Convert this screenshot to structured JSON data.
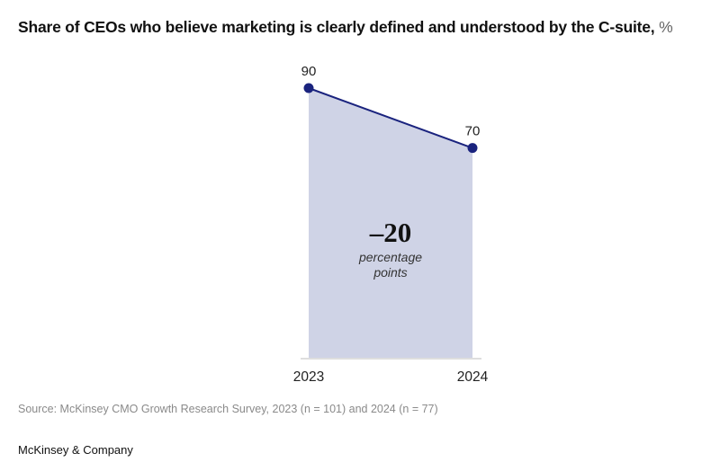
{
  "title": {
    "text": "Share of CEOs who believe marketing is clearly defined and understood by the C-suite,",
    "unit": "%"
  },
  "chart_data": {
    "type": "area",
    "title": "Share of CEOs who believe marketing is clearly defined and understood by the C-suite, %",
    "xlabel": "",
    "ylabel": "",
    "categories": [
      "2023",
      "2024"
    ],
    "series": [
      {
        "name": "Share of CEOs",
        "values": [
          90,
          70
        ]
      }
    ],
    "ylim": [
      0,
      90
    ],
    "grid": false,
    "legend": "none",
    "annotation": {
      "value": "–20",
      "text_line1": "percentage",
      "text_line2": "points"
    },
    "colors": {
      "line": "#1a237e",
      "fill": "#cfd3e6",
      "axis": "#bdbdbd"
    }
  },
  "footer": {
    "source": "Source: McKinsey CMO Growth Research Survey, 2023 (n = 101) and 2024 (n = 77)",
    "brand": "McKinsey & Company"
  }
}
